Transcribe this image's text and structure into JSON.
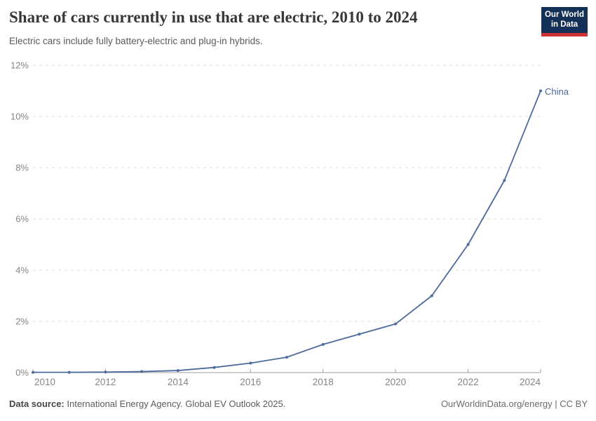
{
  "header": {
    "title": "Share of cars currently in use that are electric, 2010 to 2024",
    "subtitle": "Electric cars include fully battery-electric and plug-in hybrids.",
    "logo": {
      "line1": "Our World",
      "line2": "in Data"
    }
  },
  "chart_data": {
    "type": "line",
    "title": "Share of cars currently in use that are electric, 2010 to 2024",
    "x": [
      2010,
      2011,
      2012,
      2013,
      2014,
      2015,
      2016,
      2017,
      2018,
      2019,
      2020,
      2021,
      2022,
      2023,
      2024
    ],
    "series": [
      {
        "name": "China",
        "values": [
          0.01,
          0.01,
          0.02,
          0.04,
          0.08,
          0.2,
          0.37,
          0.6,
          1.1,
          1.5,
          1.9,
          3.0,
          5.0,
          7.5,
          11.0
        ],
        "color": "#4c6a9c"
      }
    ],
    "xlabel": "",
    "ylabel": "",
    "ylim": [
      0,
      12
    ],
    "yticks": [
      {
        "value": 0,
        "label": "0%"
      },
      {
        "value": 2,
        "label": "2%"
      },
      {
        "value": 4,
        "label": "4%"
      },
      {
        "value": 6,
        "label": "6%"
      },
      {
        "value": 8,
        "label": "8%"
      },
      {
        "value": 10,
        "label": "10%"
      },
      {
        "value": 12,
        "label": "12%"
      }
    ],
    "xticks": [
      {
        "value": 2010,
        "label": "2010"
      },
      {
        "value": 2012,
        "label": "2012"
      },
      {
        "value": 2014,
        "label": "2014"
      },
      {
        "value": 2016,
        "label": "2016"
      },
      {
        "value": 2018,
        "label": "2018"
      },
      {
        "value": 2020,
        "label": "2020"
      },
      {
        "value": 2022,
        "label": "2022"
      },
      {
        "value": 2024,
        "label": "2024"
      }
    ],
    "grid": "horizontal-dashed",
    "legend_position": "end-of-line-label",
    "end_label": "China"
  },
  "footer": {
    "source_label": "Data source:",
    "source_text": " International Energy Agency. Global EV Outlook 2025.",
    "right_text": "OurWorldinData.org/energy | CC BY"
  },
  "colors": {
    "line": "#4c6a9c",
    "grid": "#dcdcdc",
    "axis": "#9e9e9e",
    "tick_text": "#858585",
    "title_text": "#373737",
    "subtitle_text": "#5b5b5b",
    "logo_bg": "#143056",
    "logo_red": "#cf3235",
    "background": "#ffffff"
  }
}
